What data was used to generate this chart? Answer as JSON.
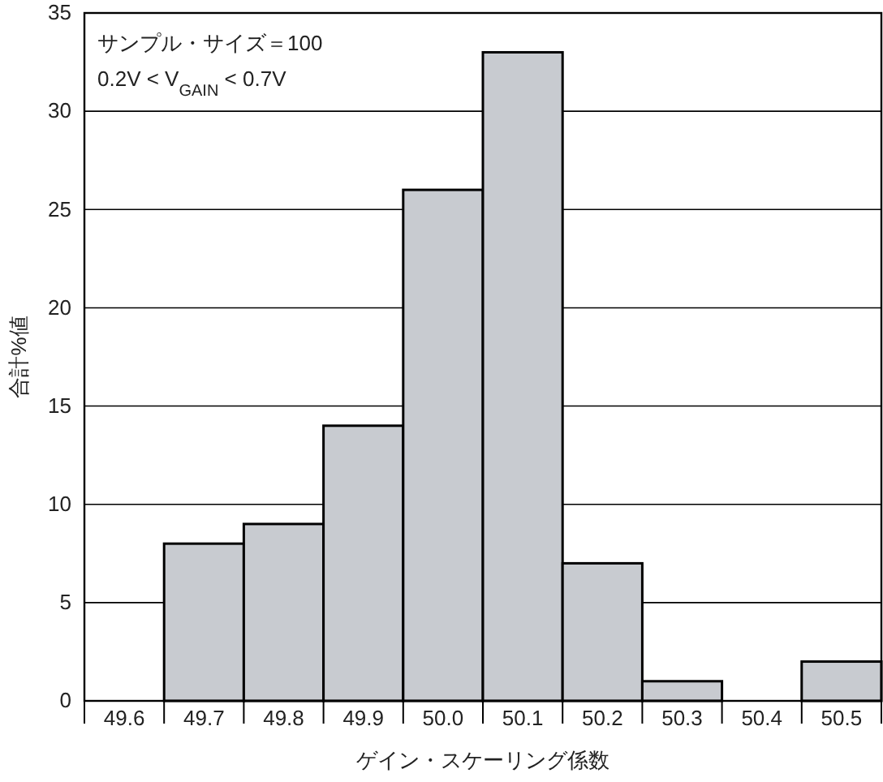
{
  "chart_data": {
    "type": "bar",
    "xlabel": "ゲイン・スケーリング係数",
    "ylabel": "合計%値",
    "categories": [
      "49.6",
      "49.7",
      "49.8",
      "49.9",
      "50.0",
      "50.1",
      "50.2",
      "50.3",
      "50.4",
      "50.5"
    ],
    "values": [
      0,
      8,
      9,
      14,
      26,
      33,
      7,
      1,
      0,
      2
    ],
    "color": "#c8cbd0",
    "ylim": [
      0,
      35
    ],
    "yticks": [
      0,
      5,
      10,
      15,
      20,
      25,
      30,
      35
    ],
    "grid": "y",
    "annotations": [
      "サンプル・サイズ＝100",
      "0.2V < V$_{GAIN}$ < 0.7V"
    ]
  }
}
